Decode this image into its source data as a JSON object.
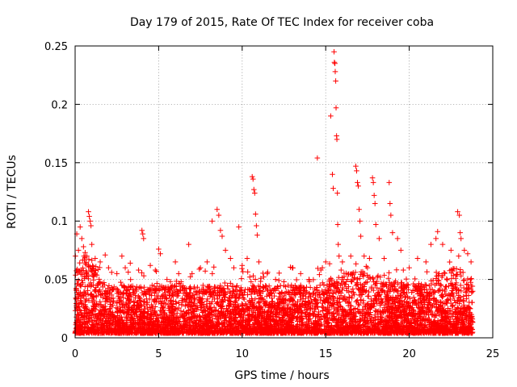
{
  "chart_data": {
    "type": "scatter",
    "title": "Day 179 of 2015, Rate Of TEC Index for receiver coba",
    "xlabel": "GPS time / hours",
    "ylabel": "ROTI / TECUs",
    "xlim": [
      0,
      25
    ],
    "ylim": [
      0,
      0.25
    ],
    "xticks": [
      0,
      5,
      10,
      15,
      20,
      25
    ],
    "xtick_labels": [
      "0",
      "5",
      "10",
      "15",
      "20",
      "25"
    ],
    "yticks": [
      0,
      0.05,
      0.1,
      0.15,
      0.2,
      0.25
    ],
    "ytick_labels": [
      "0",
      "0.05",
      "0.1",
      "0.15",
      "0.2",
      "0.25"
    ],
    "grid": true,
    "marker": "+",
    "marker_color": "#ff0000",
    "series": [
      {
        "name": "ROTI",
        "points": [
          [
            0.1,
            0.089
          ],
          [
            0.2,
            0.075
          ],
          [
            0.3,
            0.095
          ],
          [
            0.4,
            0.085
          ],
          [
            0.5,
            0.078
          ],
          [
            0.6,
            0.073
          ],
          [
            0.7,
            0.07
          ],
          [
            0.8,
            0.108
          ],
          [
            0.85,
            0.104
          ],
          [
            0.9,
            0.1
          ],
          [
            0.95,
            0.096
          ],
          [
            1.0,
            0.08
          ],
          [
            1.2,
            0.068
          ],
          [
            1.5,
            0.065
          ],
          [
            1.8,
            0.071
          ],
          [
            2.0,
            0.06
          ],
          [
            2.5,
            0.055
          ],
          [
            2.8,
            0.07
          ],
          [
            3.0,
            0.06
          ],
          [
            3.3,
            0.064
          ],
          [
            3.8,
            0.058
          ],
          [
            4.0,
            0.092
          ],
          [
            4.05,
            0.089
          ],
          [
            4.1,
            0.085
          ],
          [
            4.5,
            0.062
          ],
          [
            4.8,
            0.058
          ],
          [
            5.0,
            0.076
          ],
          [
            5.1,
            0.072
          ],
          [
            5.5,
            0.05
          ],
          [
            6.0,
            0.065
          ],
          [
            6.2,
            0.055
          ],
          [
            6.8,
            0.08
          ],
          [
            7.0,
            0.055
          ],
          [
            7.5,
            0.06
          ],
          [
            7.9,
            0.065
          ],
          [
            8.2,
            0.1
          ],
          [
            8.5,
            0.11
          ],
          [
            8.6,
            0.105
          ],
          [
            8.7,
            0.092
          ],
          [
            8.8,
            0.087
          ],
          [
            9.0,
            0.075
          ],
          [
            9.3,
            0.068
          ],
          [
            9.5,
            0.06
          ],
          [
            9.8,
            0.095
          ],
          [
            10.0,
            0.062
          ],
          [
            10.3,
            0.068
          ],
          [
            10.6,
            0.138
          ],
          [
            10.65,
            0.136
          ],
          [
            10.7,
            0.127
          ],
          [
            10.75,
            0.124
          ],
          [
            10.8,
            0.106
          ],
          [
            10.85,
            0.096
          ],
          [
            10.9,
            0.088
          ],
          [
            11.0,
            0.065
          ],
          [
            11.5,
            0.055
          ],
          [
            12.0,
            0.05
          ],
          [
            12.5,
            0.048
          ],
          [
            13.0,
            0.06
          ],
          [
            13.5,
            0.055
          ],
          [
            14.0,
            0.05
          ],
          [
            14.5,
            0.154
          ],
          [
            14.8,
            0.06
          ],
          [
            15.0,
            0.065
          ],
          [
            15.3,
            0.19
          ],
          [
            15.4,
            0.14
          ],
          [
            15.45,
            0.128
          ],
          [
            15.5,
            0.245
          ],
          [
            15.52,
            0.236
          ],
          [
            15.55,
            0.235
          ],
          [
            15.57,
            0.228
          ],
          [
            15.6,
            0.22
          ],
          [
            15.62,
            0.197
          ],
          [
            15.65,
            0.173
          ],
          [
            15.67,
            0.17
          ],
          [
            15.7,
            0.124
          ],
          [
            15.72,
            0.097
          ],
          [
            15.75,
            0.08
          ],
          [
            15.8,
            0.07
          ],
          [
            16.0,
            0.065
          ],
          [
            16.5,
            0.07
          ],
          [
            16.8,
            0.147
          ],
          [
            16.85,
            0.143
          ],
          [
            16.9,
            0.133
          ],
          [
            16.95,
            0.13
          ],
          [
            17.0,
            0.11
          ],
          [
            17.05,
            0.1
          ],
          [
            17.1,
            0.087
          ],
          [
            17.3,
            0.07
          ],
          [
            17.5,
            0.06
          ],
          [
            17.8,
            0.137
          ],
          [
            17.85,
            0.133
          ],
          [
            17.9,
            0.122
          ],
          [
            17.95,
            0.115
          ],
          [
            18.0,
            0.097
          ],
          [
            18.2,
            0.085
          ],
          [
            18.5,
            0.068
          ],
          [
            18.8,
            0.133
          ],
          [
            18.85,
            0.115
          ],
          [
            18.9,
            0.105
          ],
          [
            19.0,
            0.09
          ],
          [
            19.3,
            0.085
          ],
          [
            19.5,
            0.075
          ],
          [
            20.0,
            0.06
          ],
          [
            20.5,
            0.068
          ],
          [
            21.0,
            0.065
          ],
          [
            21.3,
            0.08
          ],
          [
            21.6,
            0.085
          ],
          [
            21.7,
            0.091
          ],
          [
            22.0,
            0.08
          ],
          [
            22.5,
            0.075
          ],
          [
            22.9,
            0.108
          ],
          [
            23.0,
            0.105
          ],
          [
            23.05,
            0.09
          ],
          [
            23.1,
            0.085
          ],
          [
            23.3,
            0.075
          ],
          [
            23.5,
            0.072
          ],
          [
            23.7,
            0.065
          ]
        ]
      }
    ],
    "noise_band": {
      "x_range": [
        0,
        23.8
      ],
      "y_base": [
        0.004,
        0.045
      ],
      "density": 5500
    }
  }
}
